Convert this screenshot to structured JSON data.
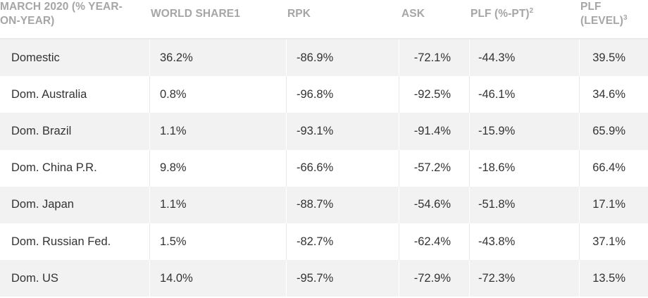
{
  "header": {
    "col0_line1": "MARCH 2020 (% YEAR-",
    "col0_line2": "ON-YEAR)",
    "col1": "WORLD SHARE1",
    "col2": "RPK",
    "col3": "ASK",
    "col4_text": "PLF (%-PT)",
    "col4_sup": "2",
    "col5_line1": "PLF",
    "col5_line2": "(LEVEL)",
    "col5_sup": "3"
  },
  "rows": [
    {
      "market": "Domestic",
      "world_share": "36.2%",
      "rpk": "-86.9%",
      "ask": "-72.1%",
      "plf_pt": "-44.3%",
      "plf_level": "39.5%"
    },
    {
      "market": "Dom. Australia",
      "world_share": "0.8%",
      "rpk": "-96.8%",
      "ask": "-92.5%",
      "plf_pt": "-46.1%",
      "plf_level": "34.6%"
    },
    {
      "market": "Dom. Brazil",
      "world_share": "1.1%",
      "rpk": "-93.1%",
      "ask": "-91.4%",
      "plf_pt": "-15.9%",
      "plf_level": "65.9%"
    },
    {
      "market": "Dom. China P.R.",
      "world_share": "9.8%",
      "rpk": "-66.6%",
      "ask": "-57.2%",
      "plf_pt": "-18.6%",
      "plf_level": "66.4%"
    },
    {
      "market": "Dom. Japan",
      "world_share": "1.1%",
      "rpk": "-88.7%",
      "ask": "-54.6%",
      "plf_pt": "-51.8%",
      "plf_level": "17.1%"
    },
    {
      "market": "Dom. Russian Fed.",
      "world_share": "1.5%",
      "rpk": "-82.7%",
      "ask": "-62.4%",
      "plf_pt": "-43.8%",
      "plf_level": "37.1%"
    },
    {
      "market": "Dom. US",
      "world_share": "14.0%",
      "rpk": "-95.7%",
      "ask": "-72.9%",
      "plf_pt": "-72.3%",
      "plf_level": "13.5%"
    }
  ]
}
